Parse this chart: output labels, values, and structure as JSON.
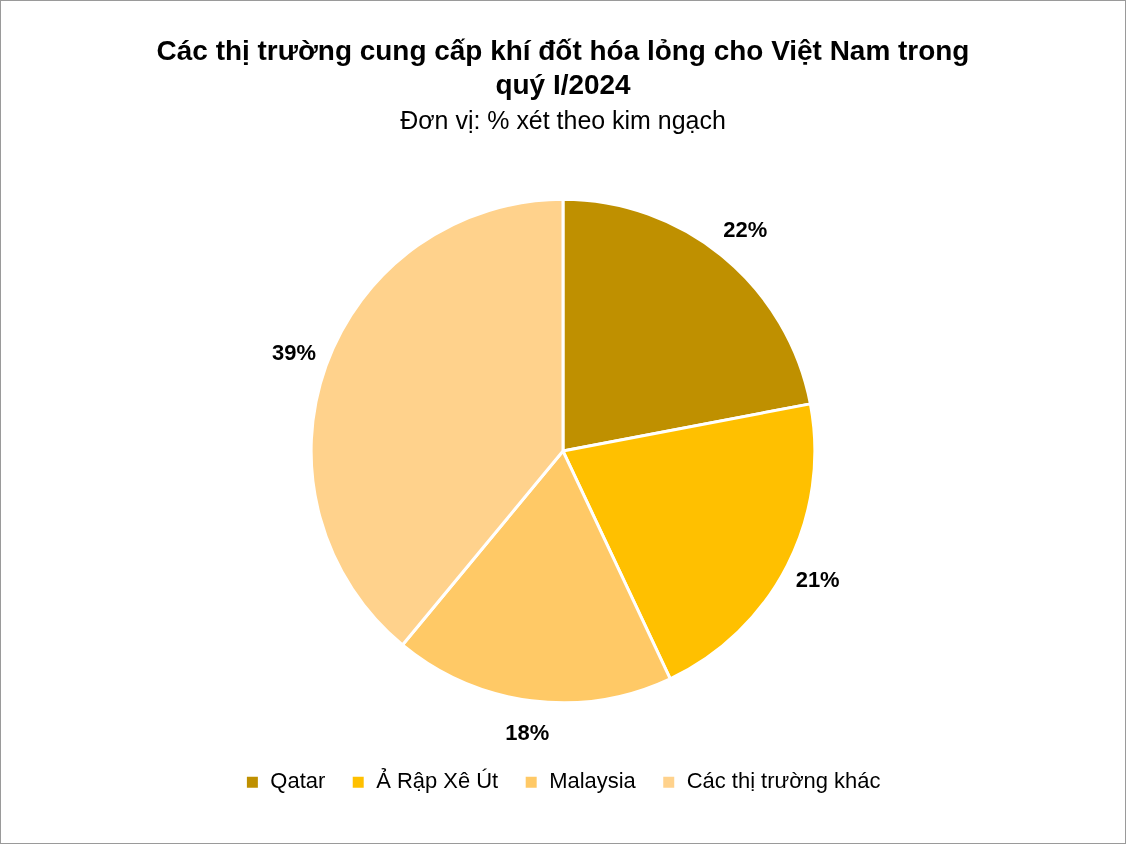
{
  "chart_data": {
    "type": "pie",
    "title": "Các thị trường cung cấp khí đốt hóa lỏng cho Việt Nam trong quý I/2024",
    "subtitle": "Đơn vị: % xét theo kim ngạch",
    "categories": [
      "Qatar",
      "Ả Rập Xê Út",
      "Malaysia",
      "Các thị trường khác"
    ],
    "values": [
      22,
      21,
      18,
      39
    ],
    "colors": [
      "#bf9000",
      "#ffc000",
      "#ffc966",
      "#ffd28c"
    ],
    "value_labels": [
      "22%",
      "21%",
      "18%",
      "39%"
    ],
    "legend": "bottom"
  }
}
